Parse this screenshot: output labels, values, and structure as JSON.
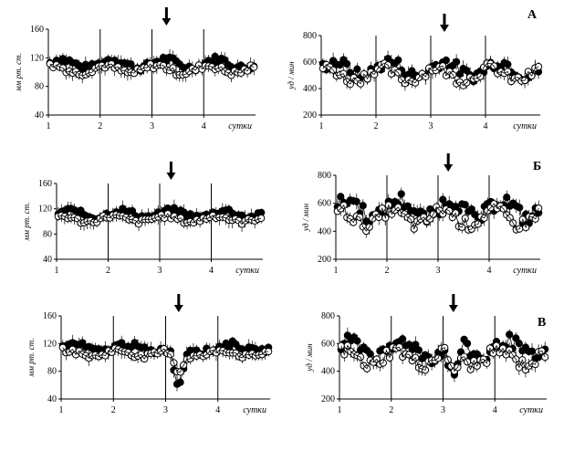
{
  "chart_data": [
    {
      "type": "scatter",
      "panel_label": "А",
      "ylabel": "мм рт. ст.",
      "xlabel": "сутки",
      "ylim": [
        40,
        160
      ],
      "yticks": [
        "40",
        "80",
        "120",
        "160"
      ],
      "xticks": [
        "1",
        "2",
        "3",
        "4"
      ],
      "xlim": [
        1,
        5
      ],
      "arrow_x": 3.28,
      "dip": 0,
      "series": [
        {
          "base": 112,
          "amp": 10
        },
        {
          "base": 104,
          "amp": 9
        }
      ]
    },
    {
      "type": "scatter",
      "panel_label": "А",
      "ylabel": "уд / мин",
      "xlabel": "сутки",
      "ylim": [
        200,
        800
      ],
      "yticks": [
        "200",
        "400",
        "600",
        "800"
      ],
      "xticks": [
        "1",
        "2",
        "3",
        "4"
      ],
      "xlim": [
        1,
        5
      ],
      "arrow_x": 3.25,
      "dip": 0,
      "series": [
        {
          "base": 550,
          "amp": 90
        },
        {
          "base": 510,
          "amp": 80
        }
      ]
    },
    {
      "type": "scatter",
      "panel_label": "Б",
      "ylabel": "мм рт. ст.",
      "xlabel": "сутки",
      "ylim": [
        40,
        160
      ],
      "yticks": [
        "40",
        "80",
        "120",
        "160"
      ],
      "xticks": [
        "1",
        "2",
        "3",
        "4"
      ],
      "xlim": [
        1,
        5
      ],
      "arrow_x": 3.22,
      "dip": 0,
      "series": [
        {
          "base": 112,
          "amp": 9
        },
        {
          "base": 104,
          "amp": 8
        }
      ]
    },
    {
      "type": "scatter",
      "panel_label": "Б",
      "ylabel": "уд / мин",
      "xlabel": "сутки",
      "ylim": [
        200,
        800
      ],
      "yticks": [
        "200",
        "400",
        "600",
        "800"
      ],
      "xticks": [
        "1",
        "2",
        "3",
        "4"
      ],
      "xlim": [
        1,
        5
      ],
      "arrow_x": 3.2,
      "dip": 0,
      "series": [
        {
          "base": 560,
          "amp": 110
        },
        {
          "base": 500,
          "amp": 90
        }
      ]
    },
    {
      "type": "scatter",
      "panel_label": "В",
      "ylabel": "мм рт. ст.",
      "xlabel": "сутки",
      "ylim": [
        40,
        160
      ],
      "yticks": [
        "40",
        "80",
        "120",
        "160"
      ],
      "xticks": [
        "1",
        "2",
        "3",
        "4"
      ],
      "xlim": [
        1,
        5
      ],
      "arrow_x": 3.25,
      "dip": 60,
      "series": [
        {
          "base": 114,
          "amp": 9
        },
        {
          "base": 106,
          "amp": 8
        }
      ]
    },
    {
      "type": "scatter",
      "panel_label": "В",
      "ylabel": "уд / мин",
      "xlabel": "сутки",
      "ylim": [
        200,
        800
      ],
      "yticks": [
        "200",
        "400",
        "600",
        "800"
      ],
      "xticks": [
        "1",
        "2",
        "3",
        "4"
      ],
      "xlim": [
        1,
        5
      ],
      "arrow_x": 3.2,
      "dip": 250,
      "series": [
        {
          "base": 560,
          "amp": 100
        },
        {
          "base": 500,
          "amp": 90
        }
      ]
    }
  ],
  "panel_labels": [
    "А",
    "Б",
    "В"
  ]
}
